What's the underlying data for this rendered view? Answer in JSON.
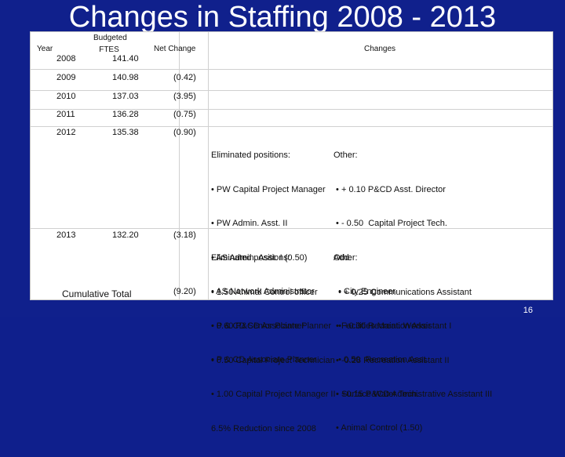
{
  "slide": {
    "title": "Changes in Staffing 2008 - 2013",
    "page_number": "16"
  },
  "table": {
    "headers": {
      "year": "Year",
      "ftes_top": "Budgeted",
      "ftes_bottom": "FTES",
      "net_change": "Net Change",
      "changes": "Changes"
    },
    "rows": [
      {
        "year": "2008",
        "ftes": "141.40",
        "net": ""
      },
      {
        "year": "2009",
        "ftes": "140.98",
        "net": "(0.42)"
      },
      {
        "year": "2010",
        "ftes": "137.03",
        "net": "(3.95)"
      },
      {
        "year": "2011",
        "ftes": "136.28",
        "net": "(0.75)"
      },
      {
        "year": "2012",
        "ftes": "135.38",
        "net": "(0.90)"
      },
      {
        "year": "2013",
        "ftes": "132.20",
        "net": "(3.18)"
      }
    ],
    "cumulative": {
      "label": "Cumulative Total",
      "net": "(9.20)",
      "note": "6.5% Reduction since 2008"
    },
    "changes_2012": {
      "left": [
        "Eliminated positions:",
        "• PW Capital Project Manager",
        "• PW Admin. Asst. II",
        "• AS Admin. Asst. I (0.50)",
        "• AS Network Administrator",
        "• P & CD Senior Planner",
        "• P & CD Associate Planner"
      ],
      "right": [
        "Other:",
        " • + 0.10 P&CD Asst. Director",
        " • - 0.50  Capital Project Tech.",
        "Add:",
        "  • City Engineer",
        " • Facilities Maint. Worker",
        "  • 0.50  Recreation Asst.",
        " • Surface Water Tech.",
        " • Animal Control (1.50)"
      ]
    },
    "changes_2013": {
      "left": [
        "Eliminated positions:",
        "• 1.50 Animal Control officer",
        "• 0.60 P&CD Associate Planner",
        "• 0.50 Capital Project Technician",
        "• 1.00 Capital Project Manager II"
      ],
      "right": [
        "Other:",
        "  • + 0.25 Communications Assistant",
        "  • +0.30 Recreation Assistant I",
        " • -0.28 Recreation Assistant II",
        " • +0.15 P&CD Administrative Assistant III"
      ]
    }
  }
}
